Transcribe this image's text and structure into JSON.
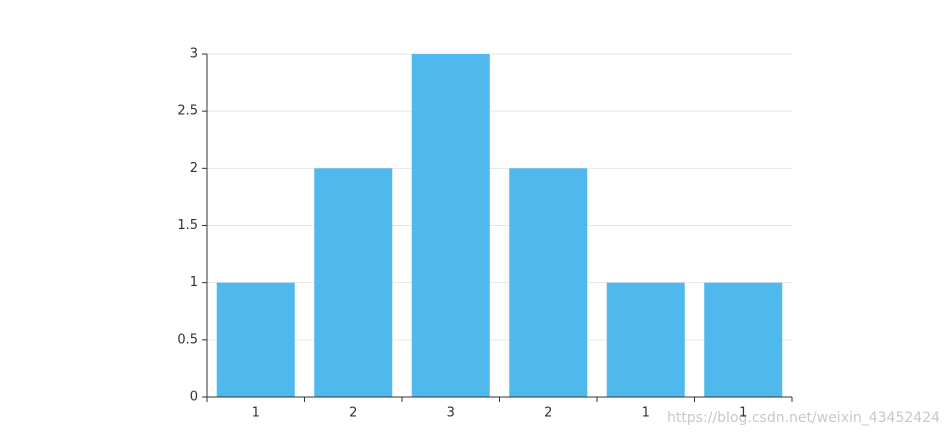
{
  "chart_data": {
    "type": "bar",
    "categories": [
      "1",
      "2",
      "3",
      "2",
      "1",
      "1"
    ],
    "values": [
      1,
      2,
      3,
      2,
      1,
      1
    ],
    "color": "#4fb8ec",
    "ylim": [
      0,
      3
    ],
    "yticks": [
      0,
      0.5,
      1,
      1.5,
      2,
      2.5,
      3
    ],
    "grid": true,
    "watermark": "https://blog.csdn.net/weixin_43452424"
  }
}
